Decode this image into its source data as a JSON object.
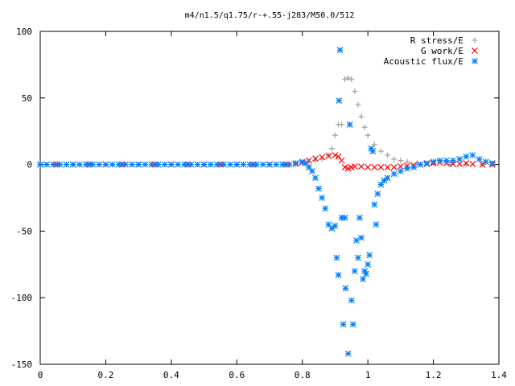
{
  "chart_data": {
    "type": "scatter",
    "title": "m4/n1.5/q1.75/r-+.55-j283/M50.0/512",
    "xlabel": "",
    "ylabel": "",
    "xlim": [
      0,
      1.4
    ],
    "ylim": [
      -150,
      100
    ],
    "x_ticks": [
      "0",
      "0.2",
      "0.4",
      "0.6",
      "0.8",
      "1",
      "1.2",
      "1.4"
    ],
    "y_ticks": [
      "100",
      "50",
      "0",
      "-50",
      "-100",
      "-150"
    ],
    "grid": false,
    "legend_position": "top-right",
    "series": [
      {
        "name": "R stress/E",
        "marker": "plus",
        "color": "#a0a0a4",
        "points": [
          [
            0.0,
            0
          ],
          [
            0.05,
            0
          ],
          [
            0.1,
            0
          ],
          [
            0.15,
            0
          ],
          [
            0.2,
            0
          ],
          [
            0.25,
            0
          ],
          [
            0.3,
            0
          ],
          [
            0.35,
            0
          ],
          [
            0.4,
            0
          ],
          [
            0.45,
            0
          ],
          [
            0.5,
            0
          ],
          [
            0.55,
            0
          ],
          [
            0.6,
            0
          ],
          [
            0.65,
            0
          ],
          [
            0.7,
            0
          ],
          [
            0.75,
            0
          ],
          [
            0.78,
            0.5
          ],
          [
            0.8,
            1
          ],
          [
            0.82,
            2
          ],
          [
            0.84,
            3
          ],
          [
            0.86,
            4
          ],
          [
            0.88,
            7
          ],
          [
            0.89,
            12
          ],
          [
            0.9,
            22
          ],
          [
            0.91,
            30
          ],
          [
            0.92,
            30
          ],
          [
            0.93,
            64
          ],
          [
            0.94,
            65
          ],
          [
            0.95,
            64
          ],
          [
            0.96,
            55
          ],
          [
            0.97,
            45
          ],
          [
            0.98,
            36
          ],
          [
            0.99,
            28
          ],
          [
            1.0,
            22
          ],
          [
            1.02,
            15
          ],
          [
            1.04,
            10
          ],
          [
            1.06,
            7
          ],
          [
            1.08,
            4
          ],
          [
            1.1,
            3
          ],
          [
            1.12,
            2
          ],
          [
            1.15,
            1
          ],
          [
            1.2,
            0.5
          ],
          [
            1.25,
            0
          ],
          [
            1.3,
            0
          ],
          [
            1.35,
            0
          ],
          [
            1.38,
            0
          ]
        ]
      },
      {
        "name": "G work/E",
        "marker": "cross",
        "color": "#ff0000",
        "points": [
          [
            0.0,
            0
          ],
          [
            0.05,
            0
          ],
          [
            0.1,
            0
          ],
          [
            0.15,
            0
          ],
          [
            0.2,
            0
          ],
          [
            0.25,
            0
          ],
          [
            0.3,
            0
          ],
          [
            0.35,
            0
          ],
          [
            0.4,
            0
          ],
          [
            0.45,
            0
          ],
          [
            0.5,
            0
          ],
          [
            0.55,
            0
          ],
          [
            0.6,
            0
          ],
          [
            0.65,
            0
          ],
          [
            0.7,
            0
          ],
          [
            0.75,
            0
          ],
          [
            0.78,
            0.5
          ],
          [
            0.8,
            1.5
          ],
          [
            0.82,
            3
          ],
          [
            0.84,
            4.5
          ],
          [
            0.86,
            5.5
          ],
          [
            0.88,
            6.5
          ],
          [
            0.9,
            7
          ],
          [
            0.91,
            6
          ],
          [
            0.92,
            3
          ],
          [
            0.93,
            -2
          ],
          [
            0.94,
            -3
          ],
          [
            0.95,
            -2
          ],
          [
            0.96,
            -1.5
          ],
          [
            0.98,
            -1.5
          ],
          [
            1.0,
            -2
          ],
          [
            1.02,
            -2
          ],
          [
            1.04,
            -2
          ],
          [
            1.06,
            -2
          ],
          [
            1.08,
            -2
          ],
          [
            1.1,
            -1.5
          ],
          [
            1.12,
            -1
          ],
          [
            1.14,
            -0.5
          ],
          [
            1.16,
            0
          ],
          [
            1.18,
            0.5
          ],
          [
            1.2,
            1
          ],
          [
            1.22,
            1.5
          ],
          [
            1.24,
            1
          ],
          [
            1.26,
            0.5
          ],
          [
            1.28,
            0.5
          ],
          [
            1.3,
            1
          ],
          [
            1.32,
            0.5
          ],
          [
            1.35,
            0
          ],
          [
            1.38,
            0
          ]
        ]
      },
      {
        "name": "Acoustic flux/E",
        "marker": "star",
        "color": "#0080ff",
        "points": [
          [
            0.0,
            0
          ],
          [
            0.02,
            0
          ],
          [
            0.04,
            0
          ],
          [
            0.06,
            0
          ],
          [
            0.08,
            0
          ],
          [
            0.1,
            0
          ],
          [
            0.12,
            0
          ],
          [
            0.14,
            0
          ],
          [
            0.16,
            0
          ],
          [
            0.18,
            0
          ],
          [
            0.2,
            0
          ],
          [
            0.22,
            0
          ],
          [
            0.24,
            0
          ],
          [
            0.26,
            0
          ],
          [
            0.28,
            0
          ],
          [
            0.3,
            0
          ],
          [
            0.32,
            0
          ],
          [
            0.34,
            0
          ],
          [
            0.36,
            0
          ],
          [
            0.38,
            0
          ],
          [
            0.4,
            0
          ],
          [
            0.42,
            0
          ],
          [
            0.44,
            0
          ],
          [
            0.46,
            0
          ],
          [
            0.48,
            0
          ],
          [
            0.5,
            0
          ],
          [
            0.52,
            0
          ],
          [
            0.54,
            0
          ],
          [
            0.56,
            0
          ],
          [
            0.58,
            0
          ],
          [
            0.6,
            0
          ],
          [
            0.62,
            0
          ],
          [
            0.64,
            0
          ],
          [
            0.66,
            0
          ],
          [
            0.68,
            0
          ],
          [
            0.7,
            0
          ],
          [
            0.72,
            0
          ],
          [
            0.74,
            0
          ],
          [
            0.76,
            0
          ],
          [
            0.78,
            1
          ],
          [
            0.8,
            2
          ],
          [
            0.81,
            1
          ],
          [
            0.82,
            -2
          ],
          [
            0.83,
            -5
          ],
          [
            0.84,
            -10
          ],
          [
            0.85,
            -18
          ],
          [
            0.86,
            -25
          ],
          [
            0.87,
            -33
          ],
          [
            0.88,
            -45
          ],
          [
            0.89,
            -48
          ],
          [
            0.9,
            -46
          ],
          [
            0.905,
            -70
          ],
          [
            0.91,
            -83
          ],
          [
            0.912,
            48
          ],
          [
            0.915,
            86
          ],
          [
            0.92,
            -40
          ],
          [
            0.925,
            -120
          ],
          [
            0.93,
            -40
          ],
          [
            0.932,
            -93
          ],
          [
            0.94,
            -142
          ],
          [
            0.945,
            30
          ],
          [
            0.95,
            -102
          ],
          [
            0.955,
            -120
          ],
          [
            0.96,
            -80
          ],
          [
            0.965,
            -57
          ],
          [
            0.97,
            -70
          ],
          [
            0.975,
            -40
          ],
          [
            0.98,
            -55
          ],
          [
            0.985,
            -86
          ],
          [
            0.99,
            -80
          ],
          [
            0.995,
            -82
          ],
          [
            1.0,
            -75
          ],
          [
            1.005,
            -68
          ],
          [
            1.01,
            12
          ],
          [
            1.015,
            10
          ],
          [
            1.02,
            -30
          ],
          [
            1.025,
            -45
          ],
          [
            1.03,
            -22
          ],
          [
            1.04,
            -15
          ],
          [
            1.05,
            -12
          ],
          [
            1.06,
            -10
          ],
          [
            1.08,
            -7
          ],
          [
            1.1,
            -5
          ],
          [
            1.12,
            -3
          ],
          [
            1.14,
            -2
          ],
          [
            1.16,
            0
          ],
          [
            1.18,
            1
          ],
          [
            1.2,
            2
          ],
          [
            1.22,
            3
          ],
          [
            1.24,
            3
          ],
          [
            1.26,
            3
          ],
          [
            1.28,
            4
          ],
          [
            1.3,
            6
          ],
          [
            1.32,
            7
          ],
          [
            1.34,
            4
          ],
          [
            1.36,
            2
          ],
          [
            1.38,
            1
          ]
        ]
      }
    ]
  }
}
